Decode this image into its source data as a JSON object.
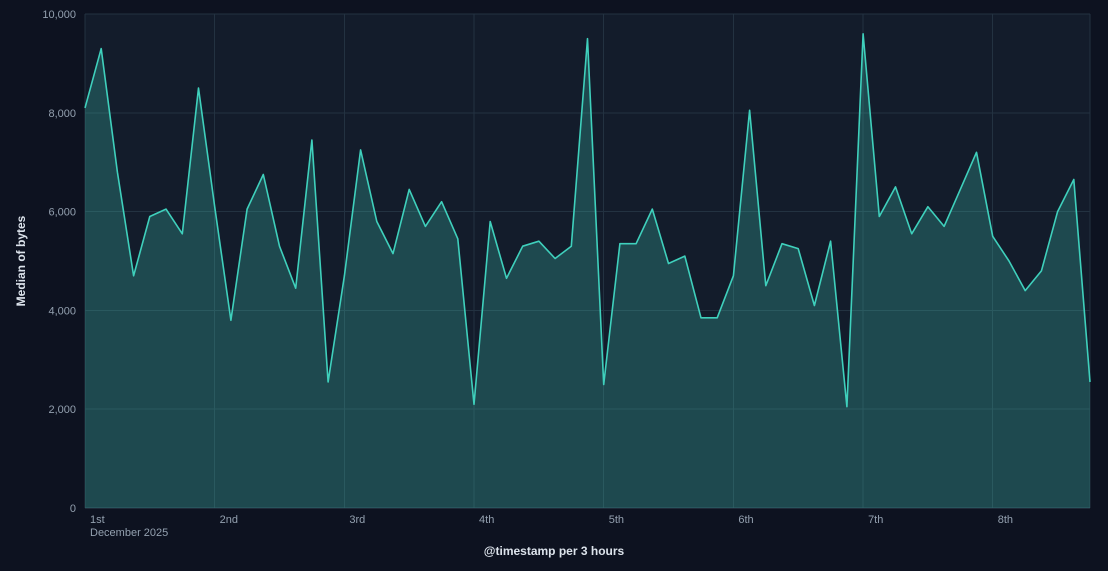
{
  "page": {
    "background": "#0d1220"
  },
  "chart_data": {
    "type": "area",
    "title": "",
    "xlabel": "@timestamp per 3 hours",
    "ylabel": "Median of bytes",
    "legend": "none",
    "grid": true,
    "x_axis": {
      "tick_labels": [
        "1st",
        "2nd",
        "3rd",
        "4th",
        "5th",
        "6th",
        "7th",
        "8th"
      ],
      "first_tick_sublabel": "December 2025",
      "points_per_tick": 8,
      "interval": "3 hours"
    },
    "y_axis": {
      "ticks": [
        0,
        2000,
        4000,
        6000,
        8000,
        10000
      ],
      "lim": [
        0,
        10000
      ]
    },
    "series": [
      {
        "name": "Median of bytes",
        "values": [
          8100,
          9300,
          6800,
          4700,
          5900,
          6050,
          5550,
          8500,
          6100,
          3800,
          6050,
          6750,
          5300,
          4450,
          7450,
          2550,
          4700,
          7250,
          5800,
          5150,
          6450,
          5700,
          6200,
          5450,
          2100,
          5800,
          4650,
          5300,
          5400,
          5050,
          5300,
          9500,
          2500,
          5350,
          5350,
          6050,
          4950,
          5100,
          3850,
          3850,
          4700,
          8050,
          4500,
          5350,
          5250,
          4100,
          5400,
          2050,
          9600,
          5900,
          6500,
          5550,
          6100,
          5700,
          6450,
          7200,
          5500,
          5000,
          4400,
          4800,
          6000,
          6650,
          2550
        ]
      }
    ],
    "colors": {
      "line": "#3fd0bc",
      "fill": "#3fd0bc",
      "fill_opacity": 0.25,
      "plot_bg": "#131c2b",
      "grid": "#233241",
      "axis_line": "#2e4050",
      "tick_text": "#93a0af",
      "title_text": "#dce3eb"
    }
  }
}
